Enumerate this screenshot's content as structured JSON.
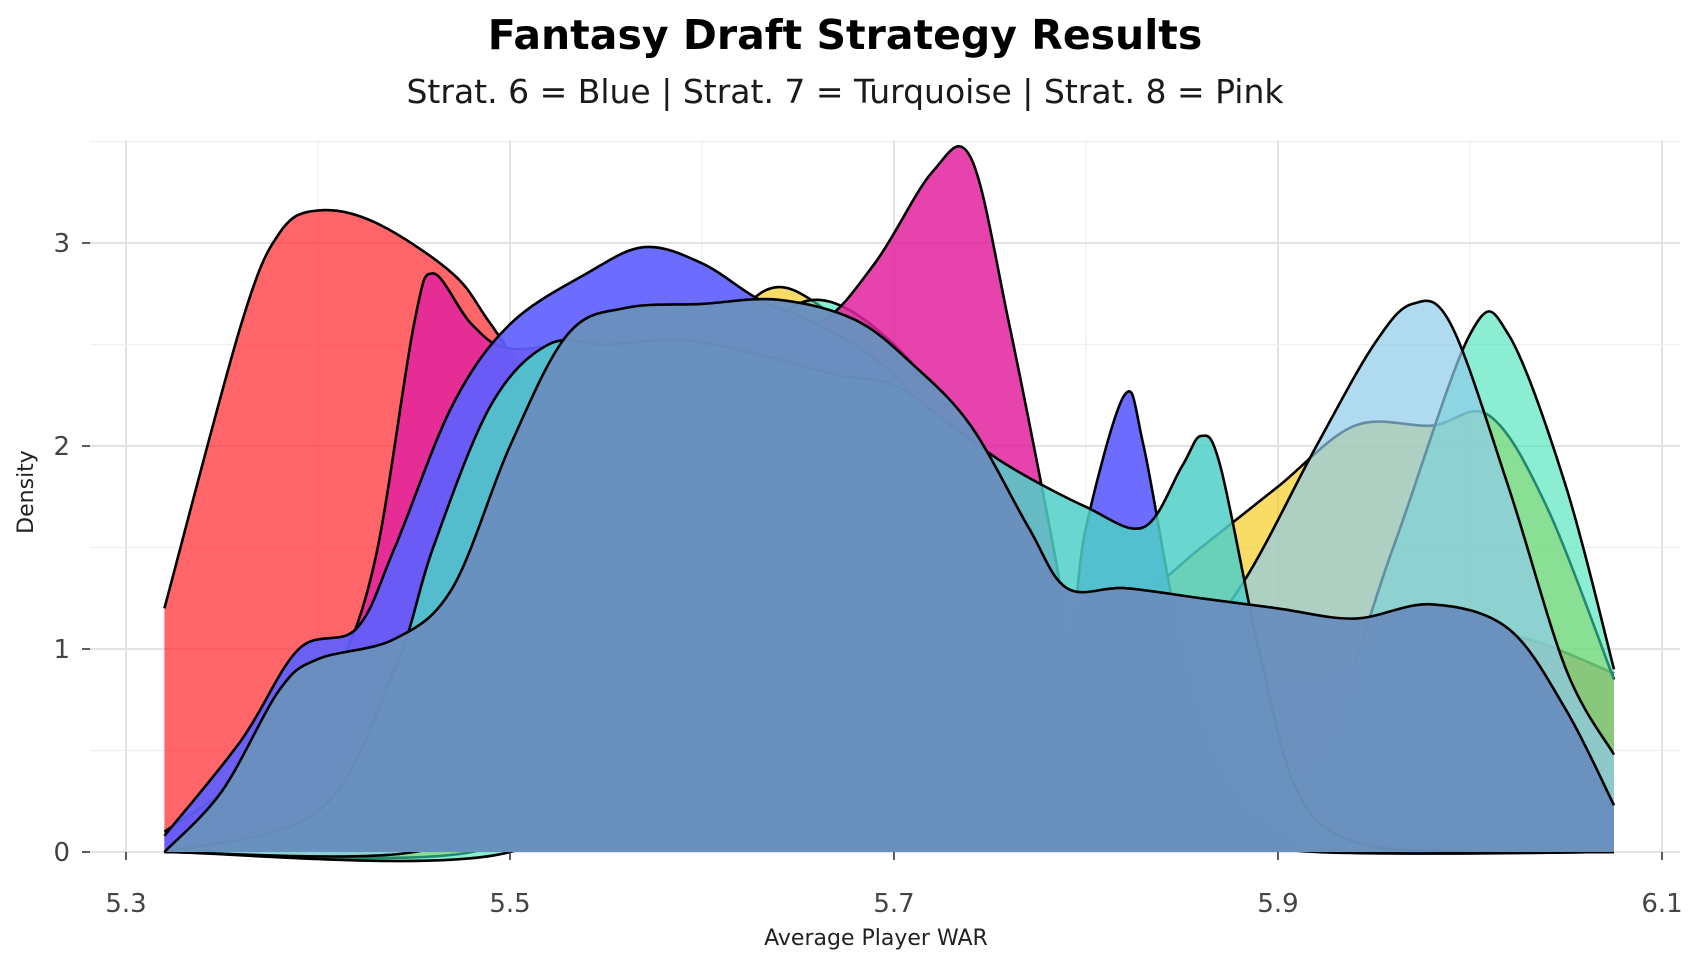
{
  "chart_data": {
    "type": "area",
    "title": "Fantasy Draft Strategy Results",
    "subtitle": "Strat. 6 = Blue | Strat. 7 = Turquoise | Strat. 8 = Pink",
    "xlabel": "Average Player WAR",
    "ylabel": "Density",
    "xlim": [
      5.3,
      6.1
    ],
    "ylim": [
      0,
      3.5
    ],
    "x_ticks": [
      "5.3",
      "5.5",
      "5.7",
      "5.9",
      "6.1"
    ],
    "x_tick_values": [
      5.3,
      5.5,
      5.7,
      5.9,
      6.1
    ],
    "y_ticks": [
      "0",
      "1",
      "2",
      "3"
    ],
    "y_tick_values": [
      0,
      1,
      2,
      3
    ],
    "grid": true,
    "series": [
      {
        "color": "#FF2A2F",
        "opacity": 0.72,
        "points": [
          [
            5.32,
            1.2
          ],
          [
            5.36,
            2.6
          ],
          [
            5.38,
            3.05
          ],
          [
            5.4,
            3.16
          ],
          [
            5.43,
            3.1
          ],
          [
            5.47,
            2.85
          ],
          [
            5.49,
            2.6
          ],
          [
            5.52,
            2.2
          ],
          [
            5.56,
            1.85
          ],
          [
            5.6,
            1.6
          ],
          [
            5.65,
            1.5
          ],
          [
            5.7,
            1.45
          ],
          [
            5.75,
            1.32
          ],
          [
            5.8,
            1.05
          ],
          [
            5.84,
            0.92
          ],
          [
            5.87,
            0.88
          ],
          [
            5.91,
            0.86
          ],
          [
            5.95,
            1.0
          ],
          [
            5.99,
            1.1
          ],
          [
            6.03,
            1.05
          ],
          [
            6.075,
            0.88
          ]
        ]
      },
      {
        "color": "#F5C400",
        "opacity": 0.6,
        "points": [
          [
            5.32,
            0.0
          ],
          [
            5.48,
            0.0
          ],
          [
            5.53,
            0.4
          ],
          [
            5.57,
            1.4
          ],
          [
            5.6,
            2.3
          ],
          [
            5.63,
            2.75
          ],
          [
            5.66,
            2.7
          ],
          [
            5.7,
            2.3
          ],
          [
            5.74,
            1.55
          ],
          [
            5.78,
            1.1
          ],
          [
            5.82,
            1.2
          ],
          [
            5.86,
            1.5
          ],
          [
            5.9,
            1.8
          ],
          [
            5.94,
            2.1
          ],
          [
            5.98,
            2.1
          ],
          [
            6.01,
            2.15
          ],
          [
            6.04,
            1.7
          ],
          [
            6.075,
            0.85
          ]
        ]
      },
      {
        "color": "#3DE3B4",
        "opacity": 0.6,
        "points": [
          [
            5.32,
            0.0
          ],
          [
            5.5,
            0.0
          ],
          [
            5.56,
            0.6
          ],
          [
            5.6,
            1.8
          ],
          [
            5.63,
            2.5
          ],
          [
            5.66,
            2.72
          ],
          [
            5.7,
            2.5
          ],
          [
            5.74,
            2.0
          ],
          [
            5.78,
            1.2
          ],
          [
            5.82,
            0.55
          ],
          [
            5.87,
            0.3
          ],
          [
            5.92,
            0.5
          ],
          [
            5.96,
            1.5
          ],
          [
            6.0,
            2.55
          ],
          [
            6.02,
            2.55
          ],
          [
            6.05,
            1.8
          ],
          [
            6.075,
            0.9
          ]
        ]
      },
      {
        "color": "#8FCBEA",
        "opacity": 0.7,
        "points": [
          [
            5.32,
            0.0
          ],
          [
            5.45,
            0.0
          ],
          [
            5.5,
            0.3
          ],
          [
            5.55,
            1.2
          ],
          [
            5.6,
            1.7
          ],
          [
            5.64,
            1.85
          ],
          [
            5.68,
            1.7
          ],
          [
            5.72,
            1.4
          ],
          [
            5.76,
            1.1
          ],
          [
            5.8,
            0.85
          ],
          [
            5.84,
            0.85
          ],
          [
            5.88,
            1.3
          ],
          [
            5.92,
            2.0
          ],
          [
            5.95,
            2.5
          ],
          [
            5.97,
            2.7
          ],
          [
            5.99,
            2.6
          ],
          [
            6.02,
            1.8
          ],
          [
            6.05,
            0.9
          ],
          [
            6.075,
            0.48
          ]
        ]
      },
      {
        "color": "#E2239E",
        "opacity": 0.85,
        "points": [
          [
            5.32,
            0.1
          ],
          [
            5.38,
            0.5
          ],
          [
            5.41,
            0.9
          ],
          [
            5.43,
            1.45
          ],
          [
            5.45,
            2.6
          ],
          [
            5.46,
            2.85
          ],
          [
            5.48,
            2.6
          ],
          [
            5.5,
            2.48
          ],
          [
            5.54,
            2.52
          ],
          [
            5.58,
            2.55
          ],
          [
            5.62,
            2.58
          ],
          [
            5.66,
            2.6
          ],
          [
            5.69,
            2.9
          ],
          [
            5.72,
            3.35
          ],
          [
            5.74,
            3.42
          ],
          [
            5.76,
            2.6
          ],
          [
            5.785,
            1.4
          ],
          [
            5.79,
            1.05
          ],
          [
            5.8,
            0.97
          ],
          [
            5.82,
            0.6
          ],
          [
            5.84,
            0.3
          ],
          [
            5.87,
            0.1
          ],
          [
            5.92,
            0.0
          ],
          [
            6.075,
            0.0
          ]
        ]
      },
      {
        "color": "#6060FF",
        "opacity": 0.92,
        "points": [
          [
            5.32,
            0.08
          ],
          [
            5.36,
            0.55
          ],
          [
            5.39,
            1.0
          ],
          [
            5.42,
            1.1
          ],
          [
            5.44,
            1.5
          ],
          [
            5.47,
            2.2
          ],
          [
            5.5,
            2.6
          ],
          [
            5.54,
            2.85
          ],
          [
            5.57,
            2.98
          ],
          [
            5.6,
            2.9
          ],
          [
            5.63,
            2.72
          ],
          [
            5.66,
            2.6
          ],
          [
            5.7,
            2.35
          ],
          [
            5.74,
            1.85
          ],
          [
            5.77,
            1.3
          ],
          [
            5.79,
            1.0
          ],
          [
            5.8,
            1.6
          ],
          [
            5.82,
            2.25
          ],
          [
            5.83,
            2.0
          ],
          [
            5.85,
            1.0
          ],
          [
            5.87,
            0.4
          ],
          [
            5.9,
            0.1
          ],
          [
            5.94,
            0.0
          ],
          [
            6.075,
            0.0
          ]
        ]
      },
      {
        "color": "#4FCFC7",
        "opacity": 0.85,
        "points": [
          [
            5.32,
            0.0
          ],
          [
            5.4,
            0.2
          ],
          [
            5.44,
            0.9
          ],
          [
            5.46,
            1.5
          ],
          [
            5.49,
            2.2
          ],
          [
            5.52,
            2.5
          ],
          [
            5.55,
            2.5
          ],
          [
            5.59,
            2.52
          ],
          [
            5.63,
            2.45
          ],
          [
            5.67,
            2.35
          ],
          [
            5.7,
            2.3
          ],
          [
            5.73,
            2.1
          ],
          [
            5.76,
            1.9
          ],
          [
            5.8,
            1.7
          ],
          [
            5.83,
            1.6
          ],
          [
            5.85,
            1.9
          ],
          [
            5.86,
            2.05
          ],
          [
            5.87,
            1.9
          ],
          [
            5.89,
            1.0
          ],
          [
            5.91,
            0.3
          ],
          [
            5.94,
            0.05
          ],
          [
            6.0,
            0.0
          ],
          [
            6.075,
            0.0
          ]
        ]
      },
      {
        "color": "#6A8FBE",
        "opacity": 0.97,
        "points": [
          [
            5.32,
            0.0
          ],
          [
            5.35,
            0.3
          ],
          [
            5.38,
            0.8
          ],
          [
            5.4,
            0.95
          ],
          [
            5.44,
            1.05
          ],
          [
            5.47,
            1.3
          ],
          [
            5.5,
            2.0
          ],
          [
            5.53,
            2.55
          ],
          [
            5.56,
            2.68
          ],
          [
            5.6,
            2.7
          ],
          [
            5.64,
            2.72
          ],
          [
            5.68,
            2.62
          ],
          [
            5.71,
            2.4
          ],
          [
            5.74,
            2.1
          ],
          [
            5.77,
            1.6
          ],
          [
            5.79,
            1.3
          ],
          [
            5.82,
            1.3
          ],
          [
            5.86,
            1.25
          ],
          [
            5.9,
            1.2
          ],
          [
            5.94,
            1.15
          ],
          [
            5.98,
            1.22
          ],
          [
            6.02,
            1.1
          ],
          [
            6.05,
            0.7
          ],
          [
            6.075,
            0.23
          ]
        ]
      }
    ]
  }
}
